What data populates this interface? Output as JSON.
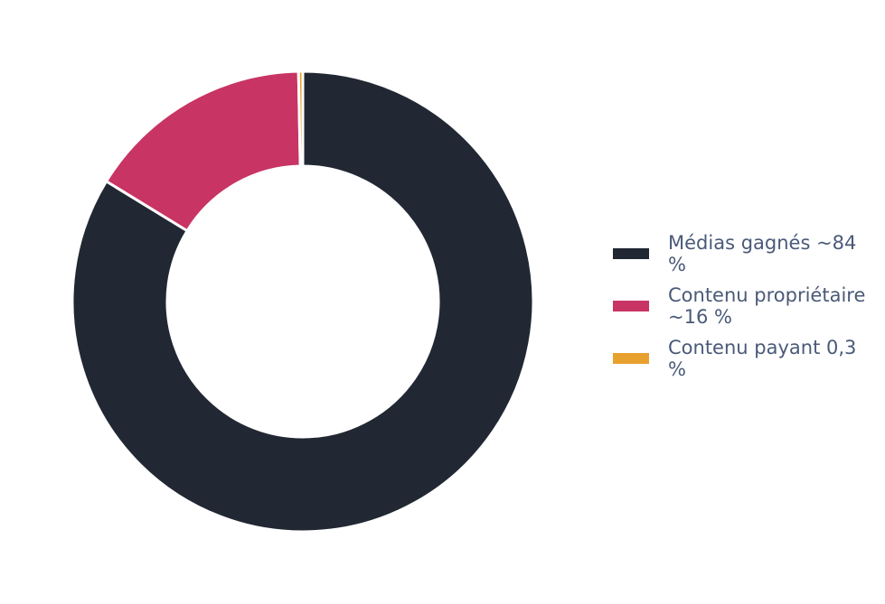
{
  "chart_data": {
    "type": "pie",
    "series": [
      {
        "name": "Médias gagnés ~84 %",
        "color": "#212833",
        "values": [
          84
        ]
      },
      {
        "name": "Contenu propriétaire ~16 %",
        "color": "#c83464",
        "values": [
          16
        ]
      },
      {
        "name": "Contenu payant 0,3 %",
        "color": "#e8a02e",
        "values": [
          0.3
        ]
      }
    ]
  }
}
